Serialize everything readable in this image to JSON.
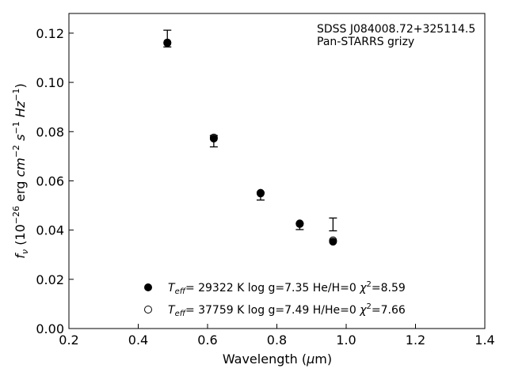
{
  "chart_data": {
    "type": "scatter",
    "annotation": [
      "SDSS J084008.72+325114.5",
      "Pan-STARRS grizy"
    ],
    "xlabel": {
      "main": "Wavelength (",
      "mu": "μ",
      "unit": "m)"
    },
    "ylabel": {
      "f": "f",
      "nu": "ν",
      "open": " (10",
      "exp1": "−26",
      "ergpart": " erg ",
      "cm": "cm",
      "exp2": "−2",
      "s": "s",
      "exp3": "−1",
      "hz": "Hz",
      "exp4": "−1",
      "close": ")"
    },
    "xlim": [
      0.2,
      1.4
    ],
    "ylim": [
      0.0,
      0.128
    ],
    "xticks": [
      "0.2",
      "0.4",
      "0.6",
      "0.8",
      "1.0",
      "1.2",
      "1.4"
    ],
    "xtick_values": [
      0.2,
      0.4,
      0.6,
      0.8,
      1.0,
      1.2,
      1.4
    ],
    "yticks": [
      "0.00",
      "0.02",
      "0.04",
      "0.06",
      "0.08",
      "0.10",
      "0.12"
    ],
    "ytick_values": [
      0.0,
      0.02,
      0.04,
      0.06,
      0.07999,
      0.1,
      0.12
    ],
    "observed": {
      "x": [
        0.484,
        0.618,
        0.753,
        0.866,
        0.962
      ],
      "y": [
        0.1178,
        0.0761,
        0.0538,
        0.0414,
        0.0423
      ],
      "yerr": [
        0.0034,
        0.0023,
        0.0016,
        0.0012,
        0.0026
      ]
    },
    "series": [
      {
        "marker": "filled",
        "x": [
          0.484,
          0.618,
          0.753,
          0.866,
          0.962
        ],
        "y": [
          0.116,
          0.0772,
          0.0549,
          0.0425,
          0.0353
        ],
        "legend": {
          "T": "T",
          "eff": "eff",
          "rest": "= 29322 K  log g=7.35  He/H=0  ",
          "chi": "χ",
          "two": "2",
          "chival": "=8.59"
        }
      },
      {
        "marker": "open",
        "x": [
          0.484,
          0.618,
          0.753,
          0.866,
          0.962
        ],
        "y": [
          0.1162,
          0.0776,
          0.0551,
          0.0427,
          0.0358
        ],
        "legend": {
          "T": "T",
          "eff": "eff",
          "rest": "= 37759 K  log g=7.49  H/He=0  ",
          "chi": "χ",
          "two": "2",
          "chival": "=7.66"
        }
      }
    ],
    "legend_location": "lower-center",
    "grid": false
  }
}
